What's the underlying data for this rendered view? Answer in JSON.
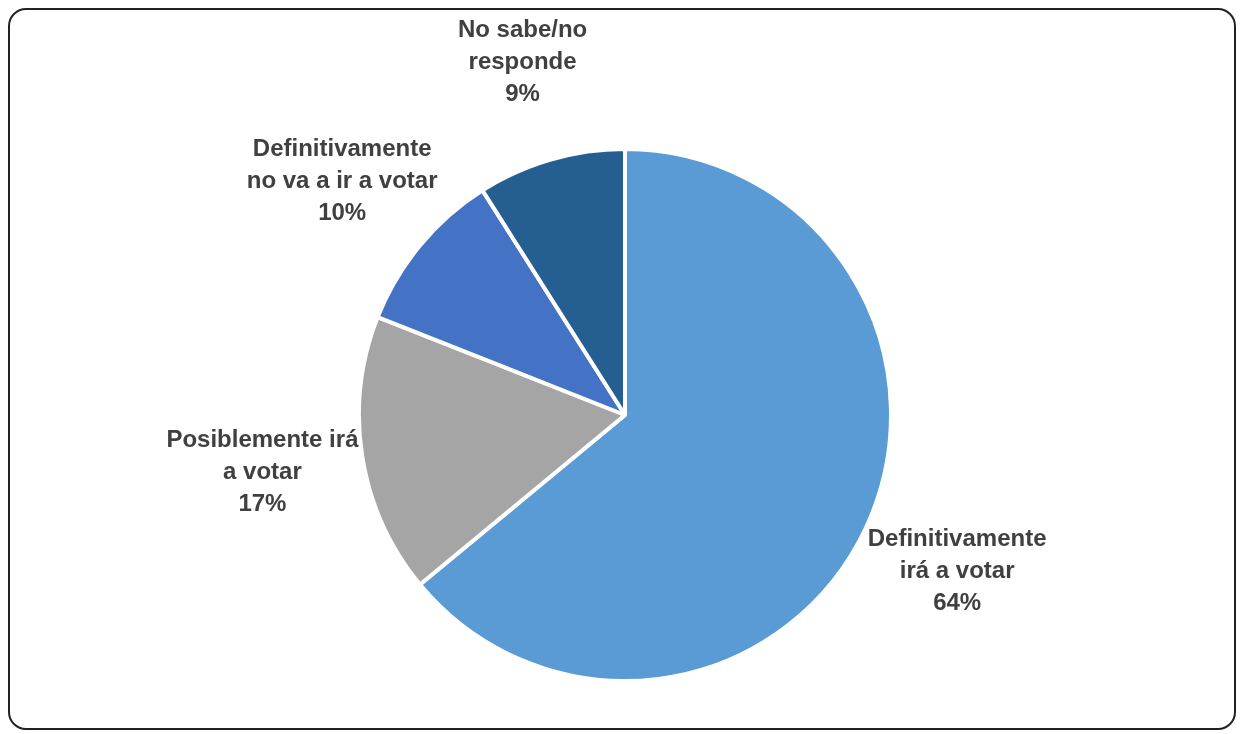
{
  "chart_data": {
    "type": "pie",
    "categories": [
      "Definitivamente irá a votar",
      "Posiblemente irá a votar",
      "Definitivamente no va a ir a votar",
      "No sabe/no responde"
    ],
    "values": [
      64,
      17,
      10,
      9
    ],
    "colors": [
      "#5b9bd5",
      "#a5a5a5",
      "#4472c4",
      "#255e91"
    ],
    "value_labels": [
      "64%",
      "17%",
      "10%",
      "9%"
    ],
    "legend": false
  }
}
